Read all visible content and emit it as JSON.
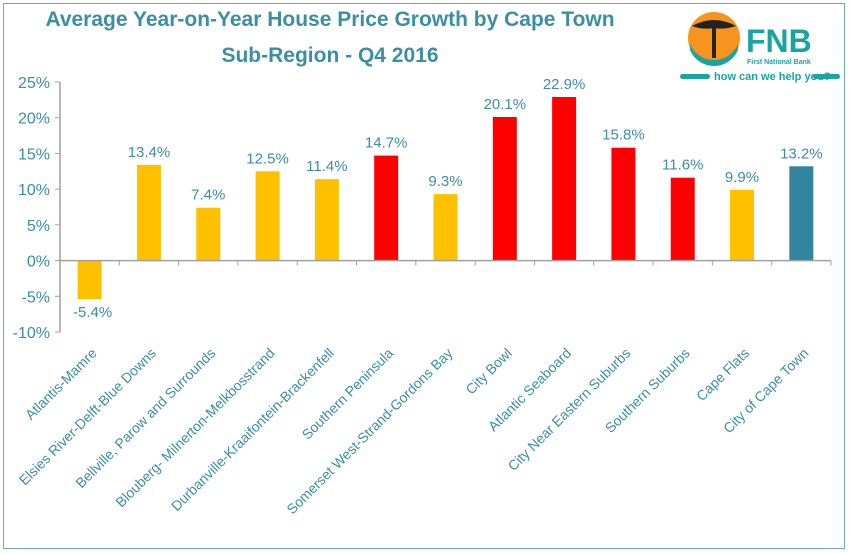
{
  "chart_data": {
    "type": "bar",
    "title_line1": "Average Year-on-Year House Price Growth by Cape Town",
    "title_line2": "Sub-Region - Q4 2016",
    "categories": [
      "Atlantis-Mamre",
      "Elsies River-Delft-Blue Downs",
      "Bellville, Parow and Surrounds",
      "Blouberg- Milnerton-Melkbosstrand",
      "Durbanville-Kraaifontein-Brackenfell",
      "Southern Peninsula",
      "Somerset West-Strand-Gordons Bay",
      "City Bowl",
      "Atlantic Seaboard",
      "City Near Eastern Suburbs",
      "Southern Suburbs",
      "Cape Flats",
      "City of Cape Town"
    ],
    "values": [
      -5.4,
      13.4,
      7.4,
      12.5,
      11.4,
      14.7,
      9.3,
      20.1,
      22.9,
      15.8,
      11.6,
      9.9,
      13.2
    ],
    "data_labels": [
      "-5.4%",
      "13.4%",
      "7.4%",
      "12.5%",
      "11.4%",
      "14.7%",
      "9.3%",
      "20.1%",
      "22.9%",
      "15.8%",
      "11.6%",
      "9.9%",
      "13.2%"
    ],
    "bar_colors": [
      "#ffc000",
      "#ffc000",
      "#ffc000",
      "#ffc000",
      "#ffc000",
      "#ff0000",
      "#ffc000",
      "#ff0000",
      "#ff0000",
      "#ff0000",
      "#ff0000",
      "#ffc000",
      "#31859c"
    ],
    "ylim": [
      -10,
      25
    ],
    "yticks": [
      -10,
      -5,
      0,
      5,
      10,
      15,
      20,
      25
    ],
    "ytick_labels": [
      "-10%",
      "-5%",
      "0%",
      "5%",
      "10%",
      "15%",
      "20%",
      "25%"
    ],
    "grid": false,
    "legend": "none"
  },
  "logo": {
    "brand": "FNB",
    "subtitle": "First National Bank",
    "tagline": "how can we help you?"
  },
  "colors": {
    "text": "#3a8ea5",
    "axis": "#a0a0a0",
    "teal": "#1aa3a3"
  }
}
